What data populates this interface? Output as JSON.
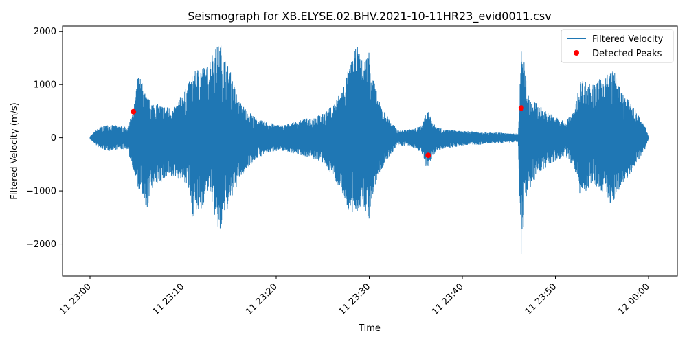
{
  "chart_data": {
    "type": "line",
    "title": "Seismograph for XB.ELYSE.02.BHV.2021-10-11HR23_evid0011.csv",
    "xlabel": "Time",
    "ylabel": "Filtered Velocity (m/s)",
    "x_unit": "time of day",
    "xlim": [
      "11 23:00",
      "12 00:00"
    ],
    "ylim": [
      -2600,
      2100
    ],
    "x_ticks": [
      "11 23:00",
      "11 23:10",
      "11 23:20",
      "11 23:30",
      "11 23:40",
      "11 23:50",
      "12 00:00"
    ],
    "y_ticks": [
      {
        "value": 2000,
        "label": "2000"
      },
      {
        "value": 1000,
        "label": "1000"
      },
      {
        "value": 0,
        "label": "0"
      },
      {
        "value": -1000,
        "label": "−1000"
      },
      {
        "value": -2000,
        "label": "−2000"
      }
    ],
    "grid": false,
    "legend_position": "top-right",
    "series": [
      {
        "name": "Filtered Velocity",
        "color": "#1f77b4",
        "style": "line",
        "envelope": {
          "time": [
            "23:00:00",
            "23:01:00",
            "23:02:00",
            "23:03:00",
            "23:04:00",
            "23:04:40",
            "23:05:10",
            "23:05:30",
            "23:06:00",
            "23:06:30",
            "23:07:00",
            "23:08:00",
            "23:09:00",
            "23:10:00",
            "23:10:30",
            "23:11:00",
            "23:12:00",
            "23:12:30",
            "23:13:00",
            "23:13:30",
            "23:14:00",
            "23:14:30",
            "23:15:00",
            "23:16:00",
            "23:17:00",
            "23:18:00",
            "23:19:00",
            "23:20:00",
            "23:21:00",
            "23:22:00",
            "23:23:00",
            "23:24:00",
            "23:25:00",
            "23:26:00",
            "23:27:00",
            "23:28:00",
            "23:28:40",
            "23:29:20",
            "23:30:00",
            "23:30:30",
            "23:31:00",
            "23:32:00",
            "23:33:00",
            "23:34:00",
            "23:35:00",
            "23:35:40",
            "23:36:10",
            "23:36:40",
            "23:37:00",
            "23:38:00",
            "23:39:00",
            "23:40:00",
            "23:41:00",
            "23:42:00",
            "23:43:00",
            "23:44:00",
            "23:45:00",
            "23:46:00",
            "23:46:20",
            "23:46:40",
            "23:47:00",
            "23:47:30",
            "23:48:00",
            "23:49:00",
            "23:50:00",
            "23:51:00",
            "23:52:00",
            "23:52:40",
            "23:53:00",
            "23:54:00",
            "23:55:00",
            "23:55:30",
            "23:56:00",
            "23:56:20",
            "23:57:00",
            "23:58:00",
            "23:59:00",
            "23:59:40",
            "00:00:00"
          ],
          "max": [
            30,
            200,
            250,
            230,
            200,
            500,
            1200,
            1100,
            800,
            700,
            650,
            600,
            550,
            850,
            1000,
            1200,
            1400,
            1300,
            1600,
            1700,
            1800,
            1500,
            1300,
            700,
            500,
            350,
            300,
            250,
            250,
            300,
            350,
            400,
            450,
            600,
            900,
            1400,
            1750,
            1400,
            1700,
            1100,
            700,
            400,
            150,
            150,
            180,
            250,
            550,
            400,
            250,
            150,
            150,
            120,
            130,
            120,
            100,
            100,
            80,
            80,
            1650,
            1400,
            900,
            700,
            650,
            500,
            400,
            300,
            500,
            1100,
            1100,
            1000,
            1150,
            1200,
            1300,
            1250,
            900,
            700,
            400,
            200,
            30
          ],
          "min": [
            -30,
            -200,
            -250,
            -220,
            -220,
            -600,
            -1000,
            -1000,
            -1500,
            -1000,
            -900,
            -800,
            -750,
            -800,
            -950,
            -1500,
            -1400,
            -1000,
            -1100,
            -1600,
            -1850,
            -1400,
            -1300,
            -800,
            -550,
            -380,
            -300,
            -250,
            -250,
            -300,
            -350,
            -400,
            -480,
            -700,
            -1000,
            -1500,
            -1400,
            -1300,
            -1550,
            -1000,
            -700,
            -400,
            -150,
            -150,
            -200,
            -300,
            -650,
            -450,
            -300,
            -200,
            -180,
            -150,
            -130,
            -130,
            -110,
            -100,
            -90,
            -90,
            -2400,
            -1300,
            -1000,
            -900,
            -700,
            -550,
            -450,
            -350,
            -550,
            -1100,
            -1050,
            -900,
            -1000,
            -1100,
            -1300,
            -1200,
            -900,
            -700,
            -400,
            -200,
            -30
          ]
        }
      },
      {
        "name": "Detected Peaks",
        "color": "#ff0000",
        "style": "scatter",
        "points": [
          {
            "time": "23:04:40",
            "value": 490
          },
          {
            "time": "23:36:20",
            "value": -330
          },
          {
            "time": "23:46:20",
            "value": 560
          }
        ]
      }
    ]
  }
}
